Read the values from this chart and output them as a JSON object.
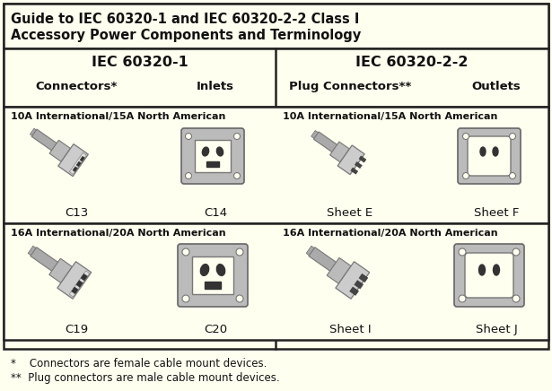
{
  "bg_color": "#FFFFF0",
  "border_color": "#333333",
  "title_line1": "Guide to IEC 60320-1 and IEC 60320-2-2 Class I",
  "title_line2": "Accessory Power Components and Terminology",
  "header_left": "IEC 60320-1",
  "header_right": "IEC 60320-2-2",
  "col1_label": "Connectors*",
  "col2_label": "Inlets",
  "col3_label": "Plug Connectors**",
  "col4_label": "Outlets",
  "row1_label_left": "10A International/15A North American",
  "row1_label_right": "10A International/15A North American",
  "row2_label_left": "16A International/20A North American",
  "row2_label_right": "16A International/20A North American",
  "names": [
    "C13",
    "C14",
    "Sheet E",
    "Sheet F",
    "C19",
    "C20",
    "Sheet I",
    "Sheet J"
  ],
  "footnote1": "*    Connectors are female cable mount devices.",
  "footnote2": "**  Plug connectors are male cable mount devices.",
  "title_fontsize": 10.5,
  "header_fontsize": 11.5,
  "sublabel_fontsize": 9.5,
  "row_label_fontsize": 8.0,
  "name_fontsize": 9.5,
  "footnote_fontsize": 8.5,
  "text_color": "#111111",
  "yellow_bg": "#FFFFF0",
  "dark_color": "#222222",
  "gray": "#999999",
  "dgray": "#555555",
  "lgray": "#cccccc"
}
